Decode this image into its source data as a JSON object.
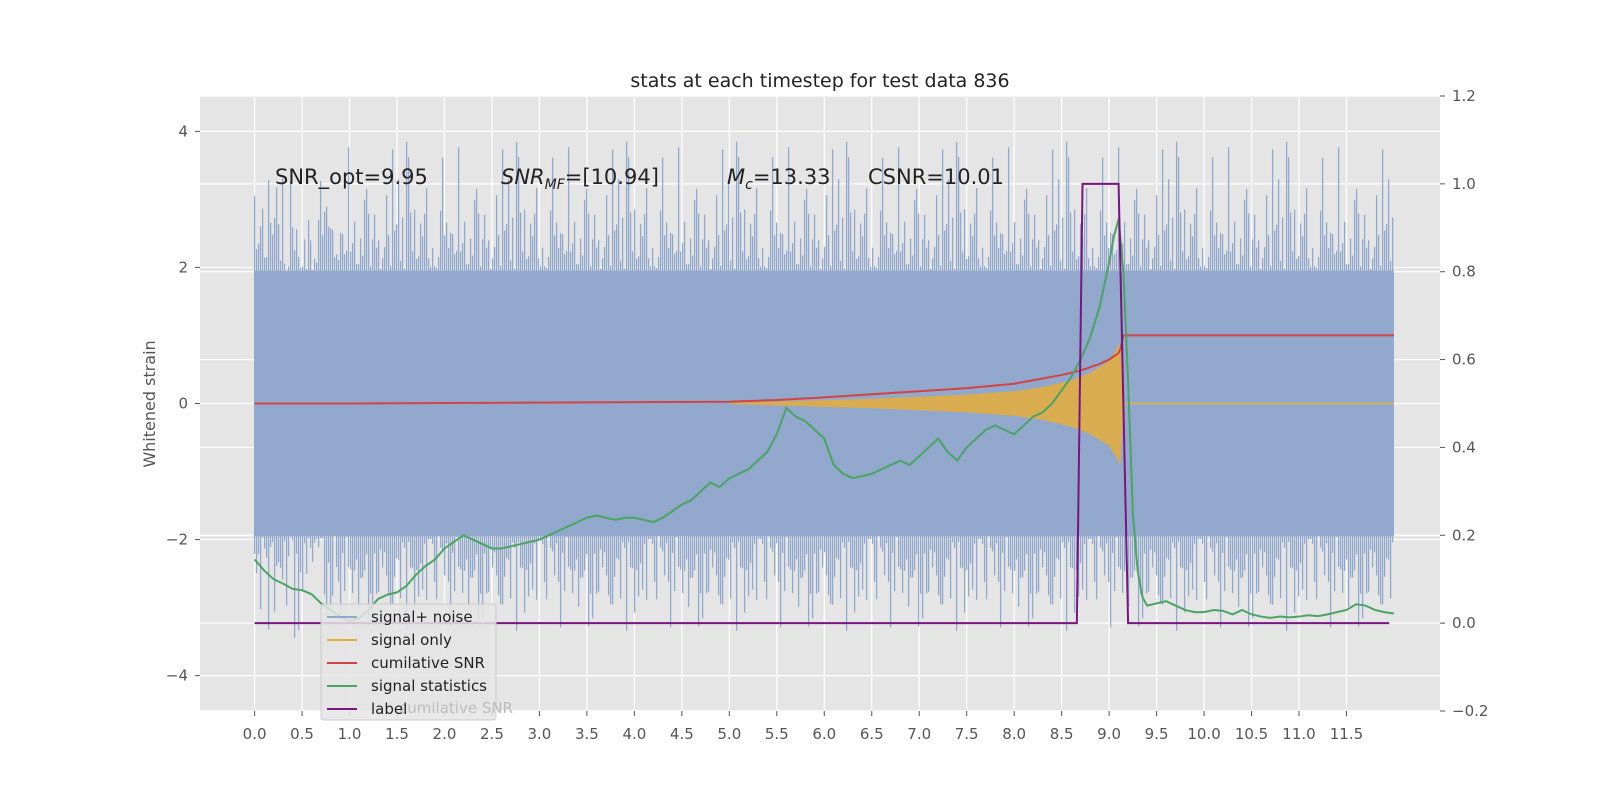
{
  "chart_data": {
    "type": "line",
    "title": "stats at each timestep for test data 836",
    "ylabel": "Whitened strain",
    "ylabel_right": "",
    "xlim": [
      -0.575,
      12.485
    ],
    "ylim": [
      -4.52,
      4.52
    ],
    "ylim_right": [
      -0.2,
      1.2
    ],
    "grid": true,
    "legend_position": "lower-left",
    "x_ticks": [
      0.0,
      0.5,
      1.0,
      1.5,
      2.0,
      2.5,
      3.0,
      3.5,
      4.0,
      4.5,
      5.0,
      5.5,
      6.0,
      6.5,
      7.0,
      7.5,
      8.0,
      8.5,
      9.0,
      9.5,
      10.0,
      10.5,
      11.0,
      11.5
    ],
    "x_tick_labels": [
      "0.0",
      "0.5",
      "1.0",
      "1.5",
      "2.0",
      "2.5",
      "3.0",
      "3.5",
      "4.0",
      "4.5",
      "5.0",
      "5.5",
      "6.0",
      "6.5",
      "7.0",
      "7.5",
      "8.0",
      "8.5",
      "9.0",
      "9.5",
      "10.0",
      "10.5",
      "11.0",
      "11.5"
    ],
    "y_ticks": [
      -4,
      -2,
      0,
      2,
      4
    ],
    "y_tick_labels": [
      "−4",
      "−2",
      "0",
      "2",
      "4"
    ],
    "y_ticks_right": [
      -0.2,
      0.0,
      0.2,
      0.4,
      0.6,
      0.8,
      1.0,
      1.2
    ],
    "y_tick_labels_right": [
      "−0.2",
      "0.0",
      "0.2",
      "0.4",
      "0.6",
      "0.8",
      "1.0",
      "1.2"
    ],
    "annotations": {
      "snr_opt": "SNR_opt=9.95",
      "snr_mf_main": "SNR",
      "snr_mf_sub": "MF",
      "snr_mf_value": "=[10.94]",
      "mc_main": "M",
      "mc_sub": "c",
      "mc_value": "=13.33",
      "csnr": "CSNR=10.01"
    },
    "series": [
      {
        "name": "signal+ noise",
        "axis": "left",
        "color": "#92a8cd",
        "description_type": "noise band",
        "x_range": [
          0.0,
          12.0
        ],
        "band_range": [
          -1.95,
          1.95
        ],
        "peak_range": [
          -3.7,
          4.1
        ]
      },
      {
        "name": "signal only",
        "axis": "left",
        "color": "#e5ae38",
        "envelope": {
          "x": [
            5.0,
            5.5,
            6.0,
            6.5,
            7.0,
            7.5,
            8.0,
            8.3,
            8.6,
            8.8,
            9.0,
            9.1,
            9.12,
            9.15
          ],
          "amplitude": [
            0.01,
            0.03,
            0.05,
            0.07,
            0.1,
            0.13,
            0.18,
            0.24,
            0.34,
            0.45,
            0.62,
            0.85,
            0.9,
            0.0
          ]
        }
      },
      {
        "name": "cumilative SNR",
        "axis": "right",
        "color": "#d04445",
        "x": [
          0.0,
          1.0,
          2.0,
          3.0,
          4.0,
          5.0,
          5.5,
          6.0,
          6.5,
          7.0,
          7.5,
          8.0,
          8.2,
          8.5,
          8.7,
          8.9,
          9.0,
          9.1,
          9.12,
          9.15,
          12.0
        ],
        "y": [
          0.5,
          0.5,
          0.501,
          0.502,
          0.503,
          0.504,
          0.508,
          0.514,
          0.521,
          0.528,
          0.535,
          0.545,
          0.553,
          0.565,
          0.575,
          0.59,
          0.6,
          0.615,
          0.625,
          0.655,
          0.655
        ]
      },
      {
        "name": "signal statistics",
        "axis": "right",
        "color": "#4aa564",
        "x": [
          0.0,
          0.1,
          0.2,
          0.3,
          0.4,
          0.5,
          0.6,
          0.7,
          0.8,
          0.9,
          1.0,
          1.1,
          1.2,
          1.3,
          1.4,
          1.5,
          1.6,
          1.7,
          1.8,
          1.9,
          2.0,
          2.1,
          2.2,
          2.3,
          2.4,
          2.5,
          2.6,
          2.7,
          2.8,
          2.9,
          3.0,
          3.1,
          3.2,
          3.3,
          3.4,
          3.5,
          3.6,
          3.7,
          3.8,
          3.9,
          4.0,
          4.1,
          4.2,
          4.3,
          4.4,
          4.5,
          4.6,
          4.7,
          4.8,
          4.9,
          5.0,
          5.1,
          5.2,
          5.3,
          5.4,
          5.5,
          5.6,
          5.7,
          5.8,
          5.9,
          6.0,
          6.1,
          6.2,
          6.3,
          6.4,
          6.5,
          6.6,
          6.7,
          6.8,
          6.9,
          7.0,
          7.1,
          7.2,
          7.3,
          7.4,
          7.5,
          7.6,
          7.7,
          7.8,
          7.9,
          8.0,
          8.1,
          8.2,
          8.3,
          8.4,
          8.5,
          8.6,
          8.7,
          8.8,
          8.9,
          9.0,
          9.05,
          9.1,
          9.15,
          9.2,
          9.25,
          9.3,
          9.35,
          9.4,
          9.5,
          9.6,
          9.7,
          9.8,
          9.9,
          10.0,
          10.1,
          10.2,
          10.3,
          10.4,
          10.5,
          10.6,
          10.7,
          10.8,
          10.9,
          11.0,
          11.1,
          11.2,
          11.3,
          11.4,
          11.5,
          11.6,
          11.7,
          11.8,
          11.9,
          12.0
        ],
        "y": [
          0.145,
          0.12,
          0.1,
          0.09,
          0.078,
          0.075,
          0.066,
          0.045,
          0.03,
          0.015,
          0.005,
          0.01,
          0.03,
          0.055,
          0.065,
          0.07,
          0.085,
          0.11,
          0.13,
          0.145,
          0.17,
          0.185,
          0.2,
          0.19,
          0.18,
          0.17,
          0.17,
          0.175,
          0.18,
          0.185,
          0.19,
          0.2,
          0.21,
          0.22,
          0.23,
          0.24,
          0.245,
          0.24,
          0.235,
          0.24,
          0.24,
          0.235,
          0.23,
          0.24,
          0.255,
          0.27,
          0.28,
          0.3,
          0.32,
          0.31,
          0.33,
          0.34,
          0.35,
          0.37,
          0.39,
          0.43,
          0.49,
          0.47,
          0.46,
          0.44,
          0.42,
          0.36,
          0.34,
          0.33,
          0.335,
          0.34,
          0.35,
          0.36,
          0.37,
          0.36,
          0.38,
          0.4,
          0.42,
          0.39,
          0.37,
          0.4,
          0.42,
          0.44,
          0.45,
          0.44,
          0.43,
          0.45,
          0.47,
          0.48,
          0.5,
          0.53,
          0.56,
          0.6,
          0.65,
          0.72,
          0.82,
          0.88,
          0.92,
          0.8,
          0.55,
          0.25,
          0.12,
          0.06,
          0.04,
          0.045,
          0.05,
          0.04,
          0.03,
          0.025,
          0.025,
          0.03,
          0.028,
          0.02,
          0.03,
          0.02,
          0.015,
          0.012,
          0.015,
          0.013,
          0.015,
          0.018,
          0.016,
          0.02,
          0.025,
          0.03,
          0.043,
          0.04,
          0.03,
          0.025,
          0.022
        ]
      },
      {
        "name": "label",
        "axis": "right",
        "color": "#7a1480",
        "x": [
          0.0,
          8.66,
          8.72,
          9.1,
          9.2,
          11.95
        ],
        "y": [
          0.0,
          0.0,
          1.0,
          1.0,
          0.0,
          0.0
        ]
      }
    ],
    "legend_entries": [
      "signal+ noise",
      "signal only",
      "cumilative SNR",
      "signal statistics",
      "label"
    ],
    "legend_overlap_text": "cumilative SNR"
  }
}
